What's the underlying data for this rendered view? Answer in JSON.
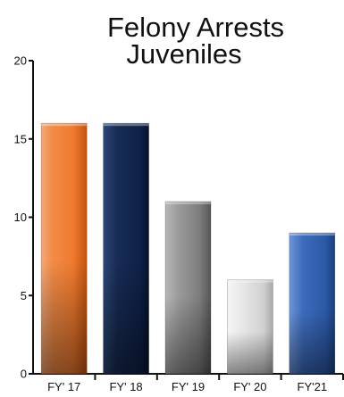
{
  "chart_data": {
    "type": "bar",
    "title_lines": [
      "Felony Arrests",
      "Juveniles"
    ],
    "categories": [
      "FY' 17",
      "FY' 18",
      "FY' 19",
      "FY' 20",
      "FY'21"
    ],
    "values": [
      16,
      16,
      11,
      6,
      9
    ],
    "bar_colors": [
      "#f08a45",
      "#12264c",
      "#8a8a8a",
      "#dedede",
      "#3562ad"
    ],
    "bar_styles": [
      "orange",
      "navy",
      "gray",
      "light",
      "blue"
    ],
    "ylim": [
      0,
      20
    ],
    "yticks": [
      0,
      5,
      10,
      15,
      20
    ],
    "xlabel": "",
    "ylabel": "",
    "grid": false,
    "legend": "none"
  }
}
